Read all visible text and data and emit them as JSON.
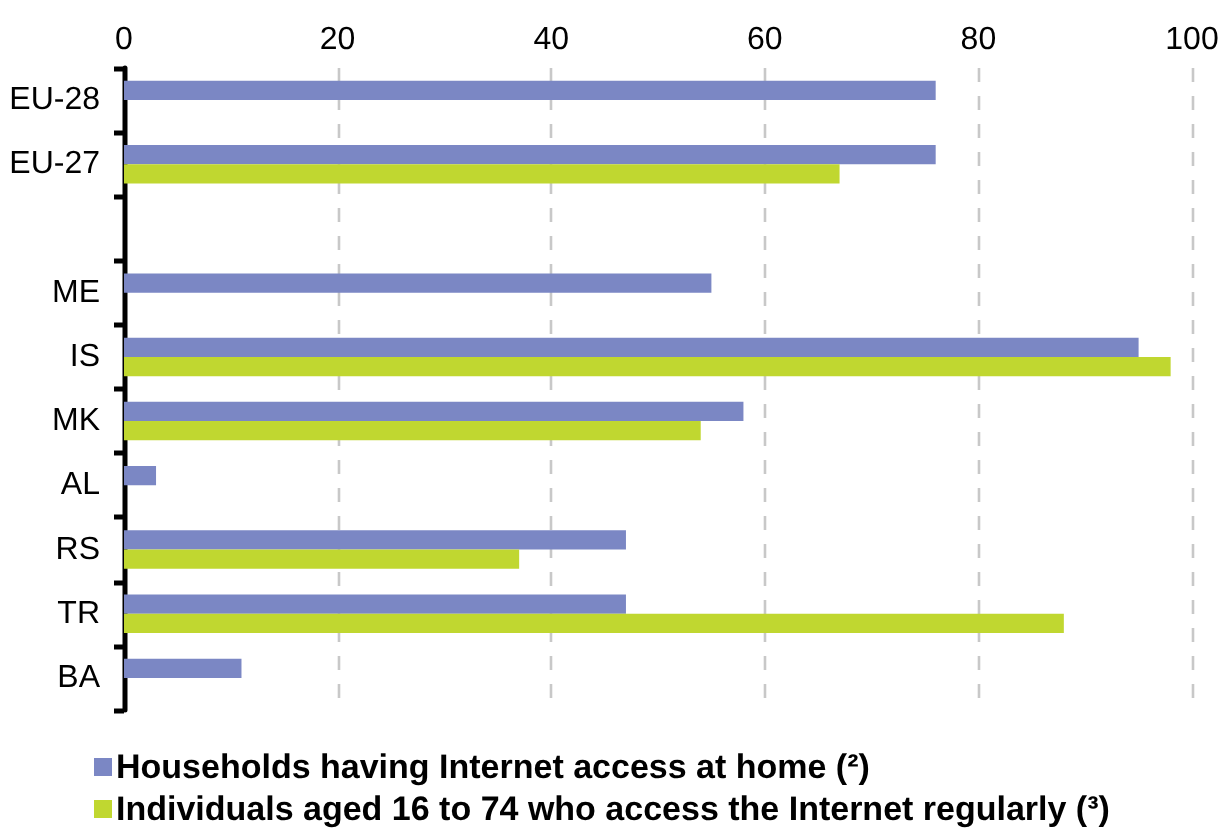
{
  "chart_data": {
    "type": "bar",
    "orientation": "horizontal",
    "categories": [
      "EU-28",
      "EU-27",
      null,
      "ME",
      "IS",
      "MK",
      "AL",
      "RS",
      "TR",
      "BA"
    ],
    "series": [
      {
        "name": "Households having Internet access at home (²)",
        "color": "#7b87c4",
        "values": [
          76,
          76,
          null,
          55,
          95,
          58,
          3,
          47,
          47,
          11
        ]
      },
      {
        "name": "Individuals aged 16 to 74 who access the Internet regularly (³)",
        "color": "#c0d730",
        "values": [
          null,
          67,
          null,
          null,
          98,
          54,
          null,
          37,
          88,
          null
        ]
      }
    ],
    "xlim": [
      0,
      100
    ],
    "xticks": [
      0,
      20,
      40,
      60,
      80,
      100
    ],
    "grid": "x",
    "legend": "bottom left"
  }
}
